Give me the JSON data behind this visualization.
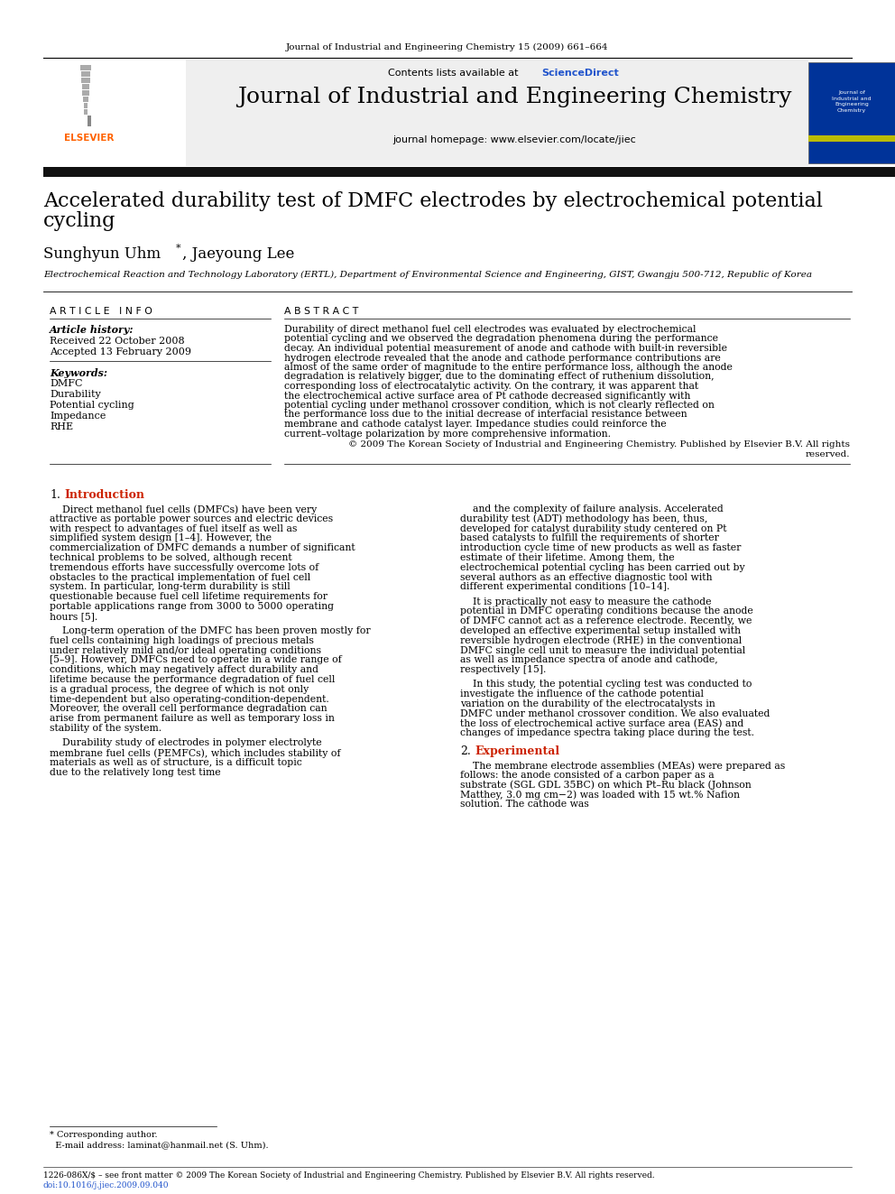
{
  "page_title": "Journal of Industrial and Engineering Chemistry 15 (2009) 661–664",
  "journal_name": "Journal of Industrial and Engineering Chemistry",
  "contents_line": "Contents lists available at ScienceDirect",
  "journal_homepage": "journal homepage: www.elsevier.com/locate/jiec",
  "article_title_line1": "Accelerated durability test of DMFC electrodes by electrochemical potential",
  "article_title_line2": "cycling",
  "authors_part1": "Sunghyun Uhm",
  "authors_part2": ", Jaeyoung Lee",
  "affiliation": "Electrochemical Reaction and Technology Laboratory (ERTL), Department of Environmental Science and Engineering, GIST, Gwangju 500-712, Republic of Korea",
  "article_info_header": "A R T I C L E   I N F O",
  "article_history_header": "Article history:",
  "received": "Received 22 October 2008",
  "accepted": "Accepted 13 February 2009",
  "keywords_header": "Keywords:",
  "keywords": [
    "DMFC",
    "Durability",
    "Potential cycling",
    "Impedance",
    "RHE"
  ],
  "abstract_header": "A B S T R A C T",
  "abstract_text": "Durability of direct methanol fuel cell electrodes was evaluated by electrochemical potential cycling and we observed the degradation phenomena during the performance decay. An individual potential measurement of anode and cathode with built-in reversible hydrogen electrode revealed that the anode and cathode performance contributions are almost of the same order of magnitude to the entire performance loss, although the anode degradation is relatively bigger, due to the dominating effect of ruthenium dissolution, corresponding loss of electrocatalytic activity. On the contrary, it was apparent that the electrochemical active surface area of Pt cathode decreased significantly with potential cycling under methanol crossover condition, which is not clearly reflected on the performance loss due to the initial decrease of interfacial resistance between membrane and cathode catalyst layer. Impedance studies could reinforce the current–voltage polarization by more comprehensive information.",
  "abstract_copyright": "© 2009 The Korean Society of Industrial and Engineering Chemistry. Published by Elsevier B.V. All rights reserved.",
  "section1_header_num": "1.",
  "section1_header_name": "Introduction",
  "section1_col1": "Direct methanol fuel cells (DMFCs) have been very attractive as portable power sources and electric devices with respect to advantages of fuel itself as well as simplified system design [1–4]. However, the commercialization of DMFC demands a number of significant technical problems to be solved, although recent tremendous efforts have successfully overcome lots of obstacles to the practical implementation of fuel cell system. In particular, long-term durability is still questionable because fuel cell lifetime requirements for portable applications range from 3000 to 5000 operating hours [5].\n\nLong-term operation of the DMFC has been proven mostly for fuel cells containing high loadings of precious metals under relatively mild and/or ideal operating conditions [5–9]. However, DMFCs need to operate in a wide range of conditions, which may negatively affect durability and lifetime because the performance degradation of fuel cell is a gradual process, the degree of which is not only time-dependent but also operating-condition-dependent. Moreover, the overall cell performance degradation can arise from permanent failure as well as temporary loss in stability of the system.\n\nDurability study of electrodes in polymer electrolyte membrane fuel cells (PEMFCs), which includes stability of materials as well as of structure, is a difficult topic due to the relatively long test time",
  "section1_col2": "and the complexity of failure analysis. Accelerated durability test (ADT) methodology has been, thus, developed for catalyst durability study centered on Pt based catalysts to fulfill the requirements of shorter introduction cycle time of new products as well as faster estimate of their lifetime. Among them, the electrochemical potential cycling has been carried out by several authors as an effective diagnostic tool with different experimental conditions [10–14].\n\nIt is practically not easy to measure the cathode potential in DMFC operating conditions because the anode of DMFC cannot act as a reference electrode. Recently, we developed an effective experimental setup installed with reversible hydrogen electrode (RHE) in the conventional DMFC single cell unit to measure the individual potential as well as impedance spectra of anode and cathode, respectively [15].\n\nIn this study, the potential cycling test was conducted to investigate the influence of the cathode potential variation on the durability of the electrocatalysts in DMFC under methanol crossover condition. We also evaluated the loss of electrochemical active surface area (EAS) and changes of impedance spectra taking place during the test.",
  "section2_header_num": "2.",
  "section2_header_name": "Experimental",
  "section2_col2": "The membrane electrode assemblies (MEAs) were prepared as follows: the anode consisted of a carbon paper as a substrate (SGL GDL 35BC) on which Pt–Ru black (Johnson Matthey, 3.0 mg cm−2) was loaded with 15 wt.% Nafion solution. The cathode was",
  "footer_left": "1226-086X/$ – see front matter © 2009 The Korean Society of Industrial and Engineering Chemistry. Published by Elsevier B.V. All rights reserved.",
  "footer_doi": "doi:10.1016/j.jiec.2009.09.040",
  "footnote_line1": "* Corresponding author.",
  "footnote_line2": "  E-mail address: laminat@hanmail.net (S. Uhm).",
  "bg_color": "#ffffff",
  "header_bg": "#efefef",
  "elsevier_color": "#ff6200",
  "blue_link_color": "#2255cc",
  "sciencedirect_color": "#2255cc",
  "dark_bar_color": "#111111",
  "red_section_color": "#cc2200"
}
